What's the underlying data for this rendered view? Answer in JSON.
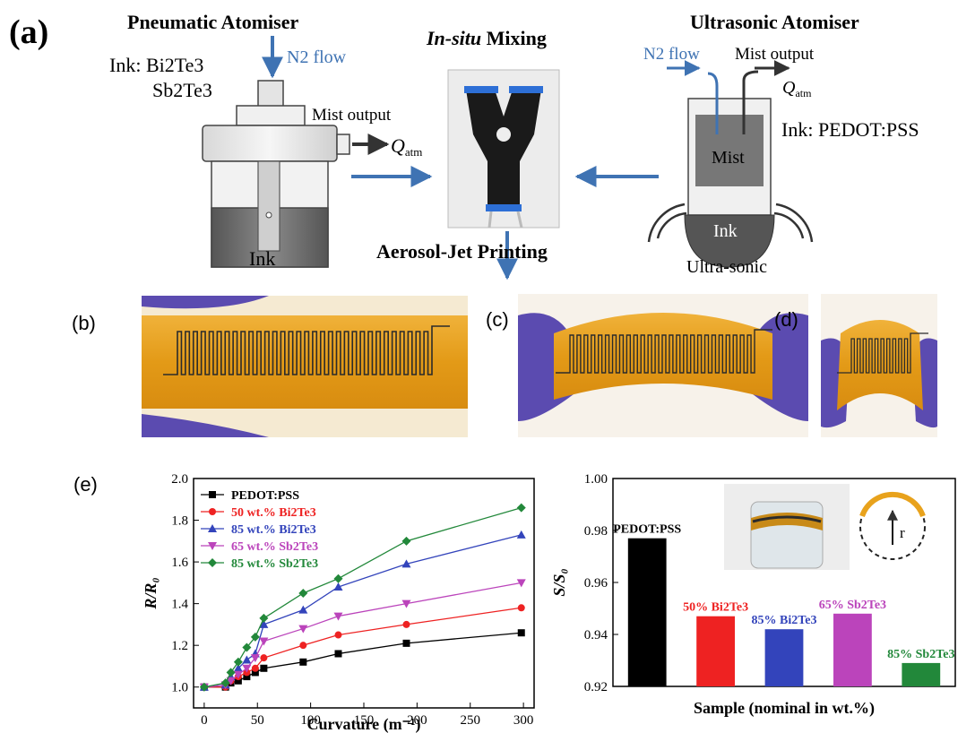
{
  "panel_a": {
    "label": "(a)",
    "pneumatic": {
      "title": "Pneumatic Atomiser",
      "n2": "N2 flow",
      "ink_label": "Ink: Bi2Te3",
      "ink_label2": "Sb2Te3",
      "mist_output": "Mist output",
      "q": "Q",
      "q_sub": "atm",
      "ink": "Ink"
    },
    "mixing": {
      "title_italic": "In-situ",
      "title_rest": " Mixing"
    },
    "printing": "Aerosol-Jet Printing",
    "ultrasonic": {
      "title": "Ultrasonic Atomiser",
      "n2": "N2 flow",
      "mist_output": "Mist output",
      "q": "Q",
      "q_sub": "atm",
      "ink_label": "Ink: PEDOT:PSS",
      "mist": "Mist",
      "ink": "Ink",
      "source": "Ultra-sonic"
    }
  },
  "panel_b": {
    "label": "(b)"
  },
  "panel_c": {
    "label": "(c)"
  },
  "panel_d": {
    "label": "(d)"
  },
  "panel_e": {
    "label": "(e)"
  },
  "colors": {
    "arrow": "#3f73b3",
    "kapton": "#e8a21c",
    "glove": "#5b4bb0",
    "pedot": "#000000",
    "bi50": "#ee2222",
    "bi85": "#3344bb",
    "sb65": "#bb44bb",
    "sb85": "#22883a"
  },
  "chart_data": [
    {
      "type": "line",
      "xlabel": "Curvature (m⁻¹)",
      "ylabel": "R/R₀",
      "xlim": [
        -10,
        310
      ],
      "ylim": [
        0.9,
        2.0
      ],
      "xticks": [
        0,
        50,
        100,
        150,
        200,
        250,
        300
      ],
      "yticks": [
        1.0,
        1.2,
        1.4,
        1.6,
        1.8,
        2.0
      ],
      "legend_position": "top-left",
      "x": [
        0,
        20,
        25,
        32,
        40,
        48,
        56,
        93,
        126,
        190,
        298
      ],
      "series": [
        {
          "name": "PEDOT:PSS",
          "marker": "square",
          "color": "#000000",
          "values": [
            1.0,
            1.0,
            1.02,
            1.03,
            1.05,
            1.07,
            1.09,
            1.12,
            1.16,
            1.21,
            1.26
          ]
        },
        {
          "name": "50 wt.% Bi2Te3",
          "marker": "circle",
          "color": "#ee2222",
          "values": [
            1.0,
            1.0,
            1.03,
            1.05,
            1.07,
            1.09,
            1.14,
            1.2,
            1.25,
            1.3,
            1.38
          ]
        },
        {
          "name": "85 wt.% Bi2Te3",
          "marker": "triangle-up",
          "color": "#3344bb",
          "values": [
            1.0,
            1.01,
            1.05,
            1.09,
            1.13,
            1.16,
            1.3,
            1.37,
            1.48,
            1.59,
            1.73
          ]
        },
        {
          "name": "65 wt.% Sb2Te3",
          "marker": "triangle-down",
          "color": "#bb44bb",
          "values": [
            1.0,
            1.01,
            1.03,
            1.06,
            1.09,
            1.14,
            1.22,
            1.28,
            1.34,
            1.4,
            1.5
          ]
        },
        {
          "name": "85 wt.% Sb2Te3",
          "marker": "diamond",
          "color": "#22883a",
          "values": [
            1.0,
            1.02,
            1.07,
            1.12,
            1.19,
            1.24,
            1.33,
            1.45,
            1.52,
            1.7,
            1.86
          ]
        }
      ]
    },
    {
      "type": "bar",
      "xlabel": "Sample (nominal in wt.%)",
      "ylabel": "S/S₀",
      "ylim": [
        0.92,
        1.0
      ],
      "yticks": [
        0.92,
        0.94,
        0.96,
        0.98,
        1.0
      ],
      "categories": [
        "PEDOT:PSS",
        "50% Bi2Te3",
        "85% Bi2Te3",
        "65% Sb2Te3",
        "85% Sb2Te3"
      ],
      "values": [
        0.977,
        0.947,
        0.942,
        0.948,
        0.929
      ],
      "colors": [
        "#000000",
        "#ee2222",
        "#3344bb",
        "#bb44bb",
        "#22883a"
      ],
      "inset_label": "r"
    }
  ]
}
